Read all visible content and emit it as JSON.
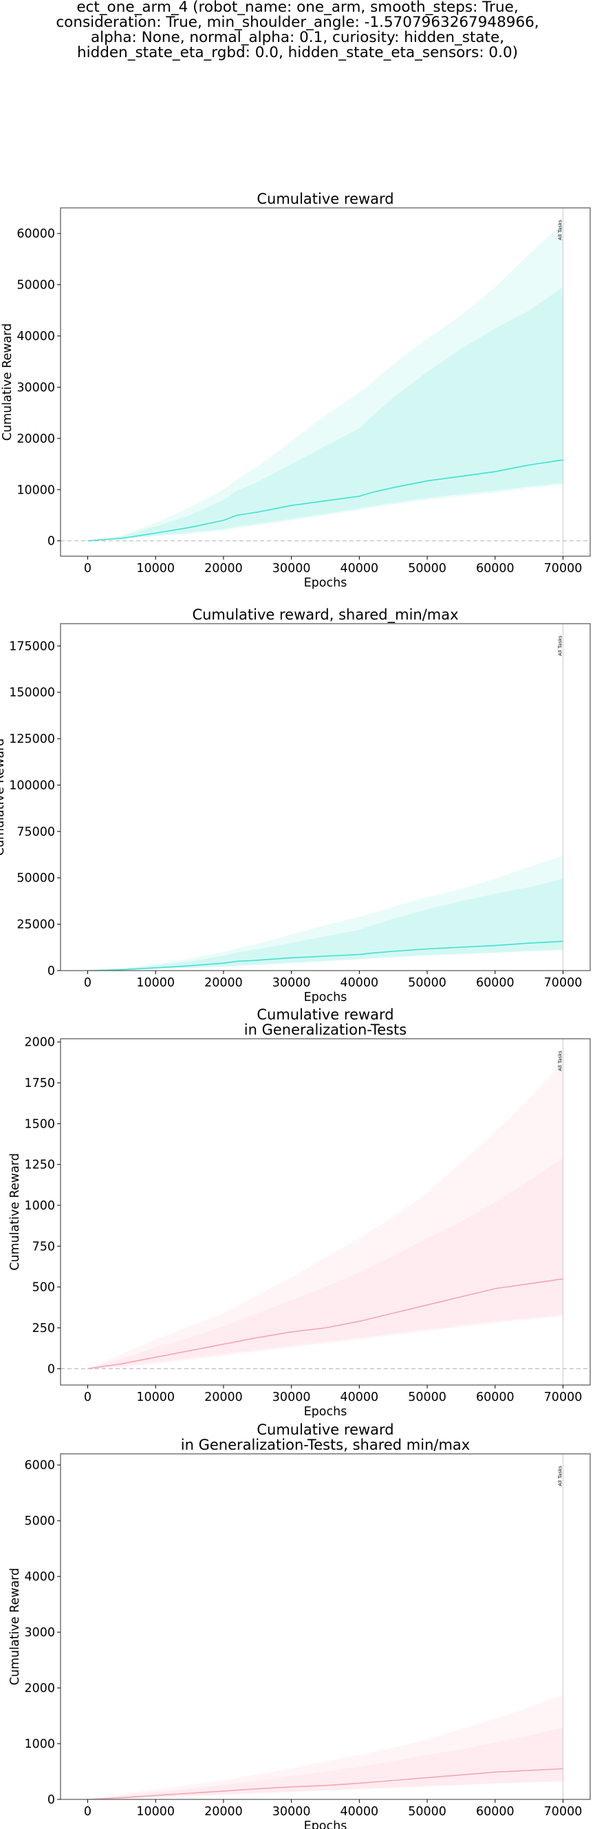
{
  "suptitle": [
    "ect_one_arm_4 (robot_name: one_arm, smooth_steps: True,",
    "consideration: True, min_shoulder_angle: -1.5707963267948966,",
    "alpha: None, normal_alpha: 0.1, curiosity: hidden_state,",
    "hidden_state_eta_rgbd: 0.0, hidden_state_eta_sensors: 0.0)"
  ],
  "colors": {
    "train_line": "#40e0d0",
    "train_band": "#40e0d0",
    "gen_line": "#f4a6b4",
    "gen_band": "#ffc0cb",
    "marker_line": "#cccccc",
    "zero_line": "#bbbbbb",
    "frame": "#555555"
  },
  "chart_data": [
    {
      "type": "line",
      "title": [
        "Cumulative reward"
      ],
      "xlabel": "Epochs",
      "ylabel": "Cumulative Reward",
      "xlim": [
        -4000,
        74000
      ],
      "ylim": [
        -3000,
        65000
      ],
      "xticks": [
        0,
        10000,
        20000,
        30000,
        40000,
        50000,
        60000,
        70000
      ],
      "yticks": [
        0,
        10000,
        20000,
        30000,
        40000,
        50000,
        60000
      ],
      "marker": {
        "x": 70000,
        "label": "All Tasks"
      },
      "zero_line": true,
      "palette": "train",
      "x": [
        0,
        5000,
        10000,
        15000,
        20000,
        22000,
        25000,
        30000,
        35000,
        40000,
        42000,
        45000,
        50000,
        55000,
        60000,
        65000,
        70000
      ],
      "mean": [
        0,
        500,
        1500,
        2600,
        4000,
        5000,
        5600,
        6900,
        7800,
        8700,
        9500,
        10400,
        11700,
        12600,
        13500,
        14800,
        15800
      ],
      "std_band": {
        "low": [
          0,
          400,
          1000,
          1600,
          2300,
          2800,
          3300,
          4300,
          5300,
          6300,
          6800,
          7400,
          8400,
          9100,
          9800,
          10600,
          11300
        ],
        "high": [
          0,
          900,
          2800,
          5000,
          8000,
          9800,
          11500,
          15000,
          18500,
          22000,
          24500,
          28000,
          33000,
          37500,
          41500,
          45000,
          49500
        ]
      },
      "minmax_band": {
        "low": [
          0,
          300,
          900,
          1400,
          2000,
          2500,
          3000,
          4000,
          5000,
          6000,
          6500,
          7100,
          8000,
          8700,
          9400,
          10300,
          11000
        ],
        "high": [
          0,
          1000,
          3500,
          6500,
          10000,
          12000,
          14500,
          19500,
          24500,
          29000,
          31000,
          34500,
          39500,
          44000,
          49500,
          56000,
          62000
        ]
      }
    },
    {
      "type": "line",
      "title": [
        "Cumulative reward, shared_min/max"
      ],
      "xlabel": "Epochs",
      "ylabel": "Cumulative Reward",
      "xlim": [
        -4000,
        74000
      ],
      "ylim": [
        0,
        187000
      ],
      "xticks": [
        0,
        10000,
        20000,
        30000,
        40000,
        50000,
        60000,
        70000
      ],
      "yticks": [
        0,
        25000,
        50000,
        75000,
        100000,
        125000,
        150000,
        175000
      ],
      "marker": {
        "x": 70000,
        "label": "All Tasks"
      },
      "zero_line": false,
      "palette": "train",
      "x": [
        0,
        5000,
        10000,
        15000,
        20000,
        22000,
        25000,
        30000,
        35000,
        40000,
        42000,
        45000,
        50000,
        55000,
        60000,
        65000,
        70000
      ],
      "mean": [
        0,
        500,
        1500,
        2600,
        4000,
        5000,
        5600,
        6900,
        7800,
        8700,
        9500,
        10400,
        11700,
        12600,
        13500,
        14800,
        15800
      ],
      "std_band": {
        "low": [
          0,
          400,
          1000,
          1600,
          2300,
          2800,
          3300,
          4300,
          5300,
          6300,
          6800,
          7400,
          8400,
          9100,
          9800,
          10600,
          11300
        ],
        "high": [
          0,
          900,
          2800,
          5000,
          8000,
          9800,
          11500,
          15000,
          18500,
          22000,
          24500,
          28000,
          33000,
          37500,
          41500,
          45000,
          49500
        ]
      },
      "minmax_band": {
        "low": [
          0,
          300,
          900,
          1400,
          2000,
          2500,
          3000,
          4000,
          5000,
          6000,
          6500,
          7100,
          8000,
          8700,
          9400,
          10300,
          11000
        ],
        "high": [
          0,
          1000,
          3500,
          6500,
          10000,
          12000,
          14500,
          19500,
          24500,
          29000,
          31000,
          34500,
          39500,
          44000,
          49500,
          56000,
          62000
        ]
      }
    },
    {
      "type": "line",
      "title": [
        "Cumulative reward",
        "in Generalization-Tests"
      ],
      "xlabel": "Epochs",
      "ylabel": "Cumulative Reward",
      "xlim": [
        -4000,
        74000
      ],
      "ylim": [
        -100,
        2020
      ],
      "xticks": [
        0,
        10000,
        20000,
        30000,
        40000,
        50000,
        60000,
        70000
      ],
      "yticks": [
        0,
        250,
        500,
        750,
        1000,
        1250,
        1500,
        1750,
        2000
      ],
      "marker": {
        "x": 70000,
        "label": "All Tasks"
      },
      "zero_line": true,
      "palette": "gen",
      "x": [
        0,
        5000,
        10000,
        15000,
        20000,
        25000,
        30000,
        35000,
        40000,
        45000,
        50000,
        55000,
        60000,
        65000,
        70000
      ],
      "mean": [
        0,
        30,
        70,
        110,
        150,
        190,
        225,
        250,
        290,
        340,
        390,
        440,
        490,
        520,
        550
      ],
      "std_band": {
        "low": [
          0,
          15,
          40,
          65,
          90,
          115,
          140,
          165,
          190,
          215,
          240,
          265,
          290,
          310,
          330
        ],
        "high": [
          0,
          60,
          130,
          190,
          260,
          340,
          420,
          500,
          590,
          690,
          800,
          900,
          1020,
          1150,
          1290
        ]
      },
      "minmax_band": {
        "low": [
          0,
          10,
          30,
          55,
          80,
          105,
          130,
          155,
          180,
          205,
          230,
          255,
          280,
          300,
          320
        ],
        "high": [
          0,
          90,
          180,
          260,
          340,
          450,
          560,
          680,
          800,
          930,
          1080,
          1260,
          1450,
          1650,
          1880
        ]
      }
    },
    {
      "type": "line",
      "title": [
        "Cumulative reward",
        "in Generalization-Tests, shared min/max"
      ],
      "xlabel": "Epochs",
      "ylabel": "Cumulative Reward",
      "xlim": [
        -4000,
        74000
      ],
      "ylim": [
        0,
        6200
      ],
      "xticks": [
        0,
        10000,
        20000,
        30000,
        40000,
        50000,
        60000,
        70000
      ],
      "yticks": [
        0,
        1000,
        2000,
        3000,
        4000,
        5000,
        6000
      ],
      "marker": {
        "x": 70000,
        "label": "All Tasks"
      },
      "zero_line": false,
      "palette": "gen",
      "x": [
        0,
        5000,
        10000,
        15000,
        20000,
        25000,
        30000,
        35000,
        40000,
        45000,
        50000,
        55000,
        60000,
        65000,
        70000
      ],
      "mean": [
        0,
        30,
        70,
        110,
        150,
        190,
        225,
        250,
        290,
        340,
        390,
        440,
        490,
        520,
        550
      ],
      "std_band": {
        "low": [
          0,
          15,
          40,
          65,
          90,
          115,
          140,
          165,
          190,
          215,
          240,
          265,
          290,
          310,
          330
        ],
        "high": [
          0,
          60,
          130,
          190,
          260,
          340,
          420,
          500,
          590,
          690,
          800,
          900,
          1020,
          1150,
          1290
        ]
      },
      "minmax_band": {
        "low": [
          0,
          10,
          30,
          55,
          80,
          105,
          130,
          155,
          180,
          205,
          230,
          255,
          280,
          300,
          320
        ],
        "high": [
          0,
          90,
          180,
          260,
          340,
          450,
          560,
          680,
          800,
          930,
          1080,
          1260,
          1450,
          1650,
          1880
        ]
      }
    }
  ]
}
